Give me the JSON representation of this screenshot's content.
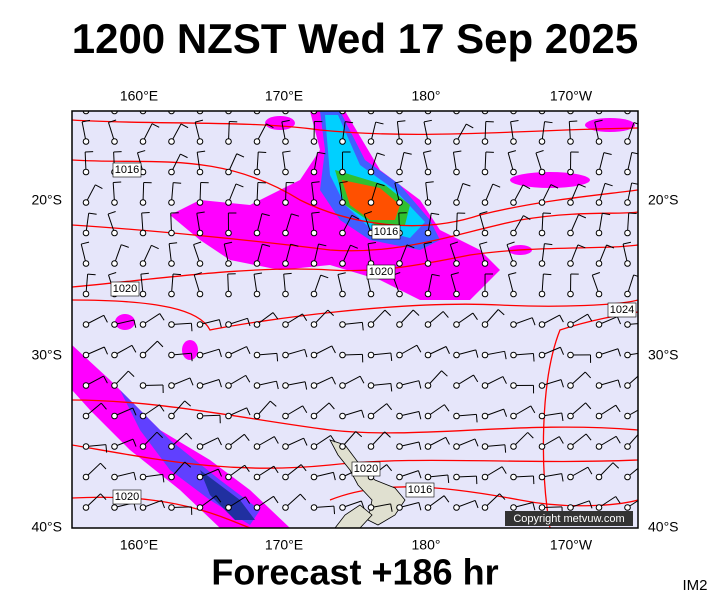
{
  "header": {
    "title": "1200 NZST Wed 17 Sep 2025"
  },
  "map": {
    "longitude_labels": [
      "160°E",
      "170°E",
      "180°",
      "170°W"
    ],
    "latitude_labels": [
      "20°S",
      "30°S",
      "40°S"
    ],
    "isobar_labels": [
      "1016",
      "1016",
      "1020",
      "1020",
      "1024",
      "1020",
      "1020",
      "1016"
    ],
    "copyright": "Copyright metvuw.com"
  },
  "footer": {
    "forecast": "Forecast +186 hr",
    "code": "IM2"
  }
}
